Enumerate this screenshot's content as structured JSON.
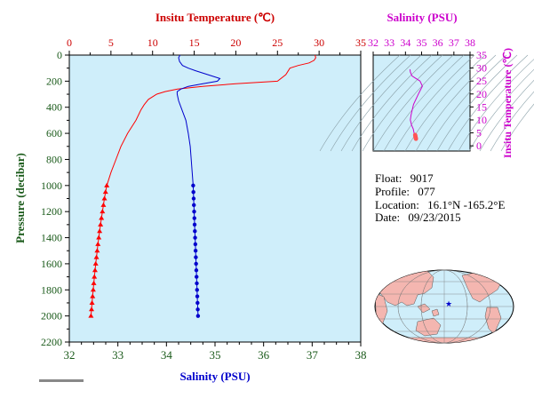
{
  "colors": {
    "temperature": "#ff0000",
    "salinity_main": "#0000cc",
    "salinity_inset": "#cc00cc",
    "panel_bg": "#cfeefa",
    "axis_text": "#1a5a1a",
    "land": "#f4b6b0",
    "ocean": "#cfeefa"
  },
  "info": {
    "float_label": "Float:",
    "float_value": "9017",
    "profile_label": "Profile:",
    "profile_value": "077",
    "location_label": "Location:",
    "location_value": "16.1°N -165.2°E",
    "date_label": "Date:",
    "date_value": "09/23/2015"
  },
  "chart_data": [
    {
      "type": "line",
      "title": "",
      "top_axis_label": "Insitu Temperature (℃)",
      "top_axis_ticks": [
        "0",
        "5",
        "10",
        "15",
        "20",
        "25",
        "30",
        "35"
      ],
      "top_axis_range": [
        0,
        35
      ],
      "bottom_axis_label": "Salinity (PSU)",
      "bottom_axis_ticks": [
        "32",
        "33",
        "34",
        "35",
        "36",
        "37",
        "38"
      ],
      "bottom_axis_range": [
        32,
        38
      ],
      "ylabel": "Pressure (decibar)",
      "y_ticks": [
        "0",
        "200",
        "400",
        "600",
        "800",
        "1000",
        "1200",
        "1400",
        "1600",
        "1800",
        "2000",
        "2200"
      ],
      "ylim": [
        0,
        2200
      ],
      "y_inverted": true,
      "series": [
        {
          "color": "red",
          "x_axis": "temperature",
          "pressure": [
            0,
            20,
            40,
            60,
            80,
            100,
            150,
            200,
            220,
            240,
            260,
            280,
            300,
            340,
            380,
            420,
            500,
            600,
            700,
            800,
            900,
            1000
          ],
          "values": [
            29.5,
            29.6,
            29.4,
            28.8,
            27.5,
            26.5,
            26.0,
            25.0,
            20.0,
            16.0,
            13.0,
            11.5,
            10.5,
            9.5,
            9.0,
            8.6,
            8.0,
            7.0,
            6.2,
            5.6,
            5.0,
            4.5
          ],
          "marker_pressure": [
            1000,
            1050,
            1100,
            1150,
            1200,
            1250,
            1300,
            1350,
            1400,
            1450,
            1500,
            1550,
            1600,
            1650,
            1700,
            1750,
            1800,
            1850,
            1900,
            1950,
            2000
          ],
          "marker_values": [
            4.5,
            4.35,
            4.22,
            4.1,
            3.98,
            3.86,
            3.75,
            3.64,
            3.54,
            3.44,
            3.35,
            3.26,
            3.17,
            3.09,
            3.01,
            2.94,
            2.87,
            2.8,
            2.73,
            2.67,
            2.6
          ]
        },
        {
          "color": "blue",
          "x_axis": "salinity",
          "pressure": [
            0,
            20,
            50,
            80,
            100,
            120,
            150,
            180,
            200,
            220,
            240,
            260,
            280,
            300,
            350,
            400,
            500,
            600,
            700,
            800,
            900,
            1000
          ],
          "values": [
            34.28,
            34.25,
            34.27,
            34.33,
            34.45,
            34.6,
            34.85,
            35.1,
            35.05,
            34.75,
            34.45,
            34.3,
            34.22,
            34.22,
            34.25,
            34.3,
            34.4,
            34.45,
            34.49,
            34.51,
            34.53,
            34.55
          ],
          "marker_pressure": [
            1000,
            1050,
            1100,
            1150,
            1200,
            1250,
            1300,
            1350,
            1400,
            1450,
            1500,
            1550,
            1600,
            1650,
            1700,
            1750,
            1800,
            1850,
            1900,
            1950,
            2000
          ],
          "marker_values": [
            34.55,
            34.555,
            34.56,
            34.565,
            34.57,
            34.575,
            34.58,
            34.585,
            34.59,
            34.595,
            34.6,
            34.605,
            34.61,
            34.615,
            34.62,
            34.625,
            34.63,
            34.635,
            34.64,
            34.645,
            34.65
          ]
        }
      ]
    },
    {
      "type": "scatter",
      "title": "",
      "xlabel": "Salinity (PSU)",
      "x_ticks": [
        "32",
        "33",
        "34",
        "35",
        "36",
        "37",
        "38"
      ],
      "xlim": [
        32,
        38
      ],
      "ylabel": "Insitu Temperature (℃)",
      "y_ticks": [
        "0",
        "5",
        "10",
        "15",
        "20",
        "25",
        "30",
        "35"
      ],
      "ylim": [
        -2,
        35
      ],
      "salinity": [
        34.28,
        34.3,
        34.4,
        34.65,
        34.9,
        35.05,
        34.8,
        34.5,
        34.35,
        34.3,
        34.38,
        34.48,
        34.55,
        34.6,
        34.65
      ],
      "temperature": [
        29.5,
        28.5,
        27.0,
        26.0,
        25.0,
        23.0,
        20.0,
        16.0,
        12.0,
        10.0,
        8.0,
        6.5,
        4.5,
        3.5,
        2.6
      ]
    }
  ]
}
